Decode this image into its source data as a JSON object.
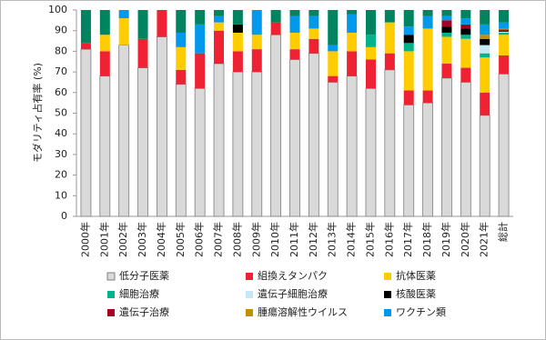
{
  "chart_data": {
    "type": "stacked_bar",
    "y_label": "モダリティ占有率 (%)",
    "categories": [
      "2000年",
      "2001年",
      "2002年",
      "2003年",
      "2004年",
      "2005年",
      "2006年",
      "2007年",
      "2008年",
      "2009年",
      "2010年",
      "2011年",
      "2012年",
      "2013年",
      "2014年",
      "2015年",
      "2016年",
      "2017年",
      "2018年",
      "2019年",
      "2020年",
      "2021年",
      "総計"
    ],
    "ylim": [
      0,
      100
    ],
    "yticks": [
      0,
      10,
      20,
      30,
      40,
      50,
      60,
      70,
      80,
      90,
      100
    ],
    "series": [
      {
        "name": "低分子医薬",
        "color": "#d9d9d9",
        "values": [
          81,
          68,
          83,
          72,
          87,
          64,
          62,
          74,
          70,
          70,
          88,
          76,
          79,
          65,
          68,
          62,
          71,
          54,
          55,
          67,
          65,
          49,
          69
        ]
      },
      {
        "name": "組換えタンパク",
        "color": "#ee2233",
        "values": [
          3,
          12,
          0,
          14,
          13,
          7,
          17,
          16,
          10,
          11,
          6,
          5,
          7,
          3,
          12,
          14,
          8,
          7,
          6,
          7,
          7,
          11,
          9
        ]
      },
      {
        "name": "抗体医薬",
        "color": "#ffcc00",
        "values": [
          0,
          8,
          13,
          0,
          0,
          11,
          0,
          4,
          9,
          7,
          0,
          8,
          5,
          12,
          9,
          6,
          15,
          19,
          30,
          13,
          14,
          17,
          10
        ]
      },
      {
        "name": "細胞治療",
        "color": "#00b38a",
        "values": [
          0,
          0,
          0,
          0,
          0,
          0,
          0,
          0,
          0,
          0,
          0,
          0,
          0,
          0,
          0,
          6,
          0,
          4,
          0,
          2,
          2,
          2,
          1
        ]
      },
      {
        "name": "遺伝子細胞治療",
        "color": "#c5e8f7",
        "values": [
          0,
          0,
          0,
          0,
          0,
          0,
          0,
          0,
          0,
          0,
          0,
          0,
          0,
          0,
          0,
          0,
          0,
          0,
          0,
          0,
          0,
          4,
          0.5
        ]
      },
      {
        "name": "核酸医薬",
        "color": "#000000",
        "values": [
          0,
          0,
          0,
          0,
          0,
          0,
          0,
          0,
          4,
          0,
          0,
          0,
          0,
          0,
          0,
          0,
          0,
          4,
          0,
          3,
          3,
          3,
          0.5
        ]
      },
      {
        "name": "遺伝子治療",
        "color": "#a50021",
        "values": [
          0,
          0,
          0,
          0,
          0,
          0,
          0,
          0,
          0,
          0,
          0,
          0,
          0,
          0,
          0,
          0,
          0,
          0,
          0,
          3,
          2,
          0,
          0.5
        ]
      },
      {
        "name": "腫瘍溶解性ウイルス",
        "color": "#c09000",
        "values": [
          0,
          0,
          0,
          0,
          0,
          0,
          0,
          0,
          0,
          0,
          0,
          0,
          0,
          0,
          0,
          0,
          0,
          0,
          0,
          0,
          0,
          2,
          0.5
        ]
      },
      {
        "name": "ワクチン類",
        "color": "#0099ee",
        "values": [
          0,
          0,
          4,
          0,
          0,
          7,
          14,
          3,
          0,
          12,
          0,
          8,
          6,
          3,
          9,
          0,
          0,
          4,
          6,
          2,
          3,
          5,
          3
        ]
      },
      {
        "color": "#00845f",
        "values": [
          16,
          12,
          0,
          14,
          0,
          11,
          7,
          3,
          7,
          0,
          6,
          3,
          3,
          17,
          2,
          12,
          6,
          8,
          3,
          3,
          4,
          7,
          6
        ]
      }
    ]
  }
}
